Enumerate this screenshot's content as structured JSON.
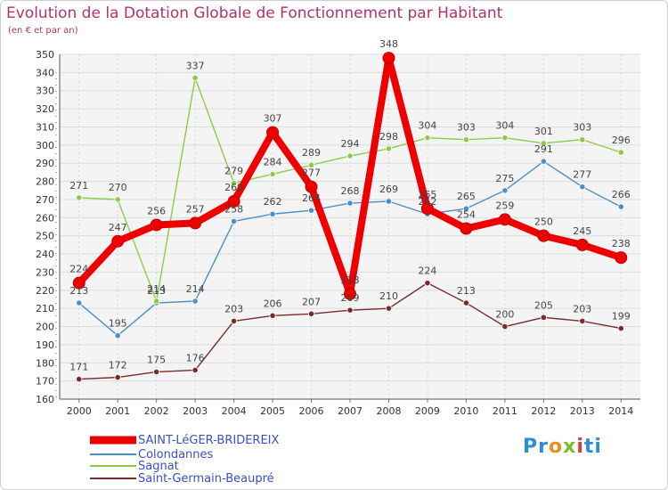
{
  "chart_data": {
    "type": "line",
    "title": "Evolution de la Dotation Globale de Fonctionnement par Habitant",
    "subtitle": "(en € et par an)",
    "x": [
      "2000",
      "2001",
      "2002",
      "2003",
      "2004",
      "2005",
      "2006",
      "2007",
      "2008",
      "2009",
      "2010",
      "2011",
      "2012",
      "2013",
      "2014"
    ],
    "ylim": [
      160,
      350
    ],
    "yticks": [
      160,
      170,
      180,
      190,
      200,
      210,
      220,
      230,
      240,
      250,
      260,
      270,
      280,
      290,
      300,
      310,
      320,
      330,
      340,
      350
    ],
    "series": [
      {
        "name": "SAINT-LéGER-BRIDEREIX",
        "color": "#ee0000",
        "values": [
          224,
          247,
          256,
          257,
          269,
          307,
          277,
          218,
          348,
          265,
          254,
          259,
          250,
          245,
          238
        ]
      },
      {
        "name": "Colondannes",
        "color": "#4a90c8",
        "values": [
          213,
          195,
          213,
          214,
          258,
          262,
          264,
          268,
          269,
          262,
          265,
          275,
          291,
          277,
          266
        ]
      },
      {
        "name": "Sagnat",
        "color": "#8ccc4a",
        "values": [
          271,
          270,
          214,
          337,
          279,
          284,
          289,
          294,
          298,
          304,
          303,
          304,
          301,
          303,
          296
        ]
      },
      {
        "name": "Saint-Germain-Beaupré",
        "color": "#7a2a2a",
        "values": [
          171,
          172,
          175,
          176,
          203,
          206,
          207,
          209,
          210,
          224,
          213,
          200,
          205,
          203,
          199
        ]
      }
    ],
    "grid": true
  },
  "logo": {
    "p1": "Pr",
    "p2": "o",
    "p3": "x",
    "p4": "i",
    "p5": "ti"
  }
}
